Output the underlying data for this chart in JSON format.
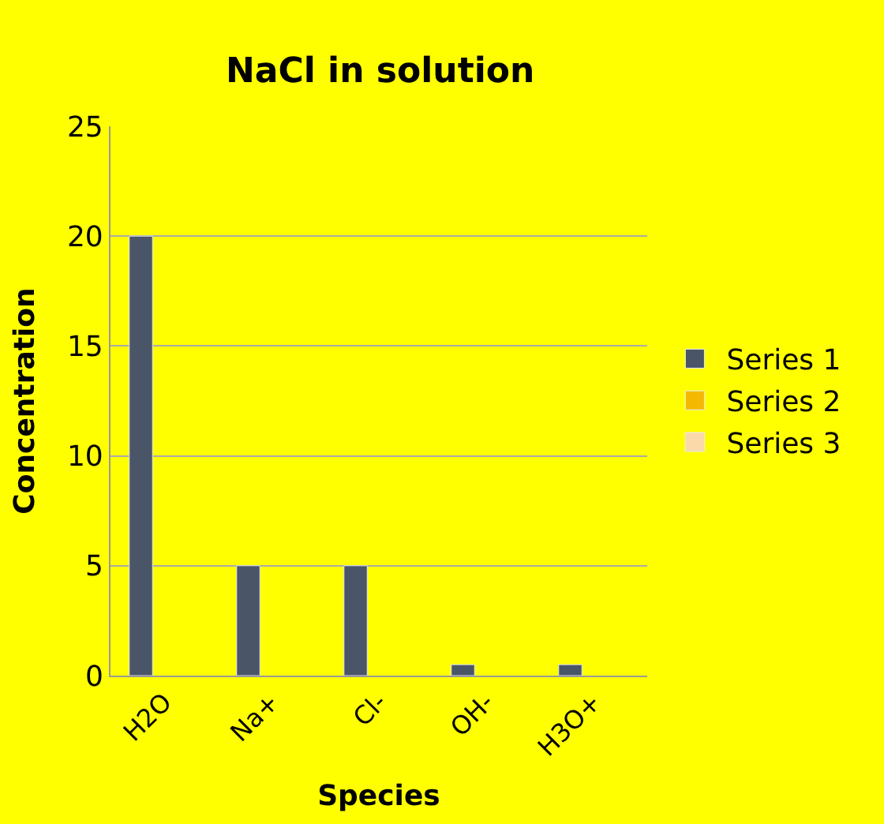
{
  "chart_data": {
    "type": "bar",
    "title": "NaCl in solution",
    "xlabel": "Species",
    "ylabel": "Concentration",
    "categories": [
      "H2O",
      "Na+",
      "Cl-",
      "OH-",
      "H3O+"
    ],
    "series": [
      {
        "name": "Series 1",
        "color": "#4a5568",
        "values": [
          20,
          5,
          5,
          0.5,
          0.5
        ]
      },
      {
        "name": "Series 2",
        "color": "#f5b800",
        "values": [
          null,
          null,
          null,
          null,
          null
        ]
      },
      {
        "name": "Series 3",
        "color": "#fcd9a8",
        "values": [
          null,
          null,
          null,
          null,
          null
        ]
      }
    ],
    "ylim": [
      0,
      25
    ],
    "yticks": [
      0,
      5,
      10,
      15,
      20,
      25
    ],
    "grid": "y",
    "legend": "right"
  }
}
